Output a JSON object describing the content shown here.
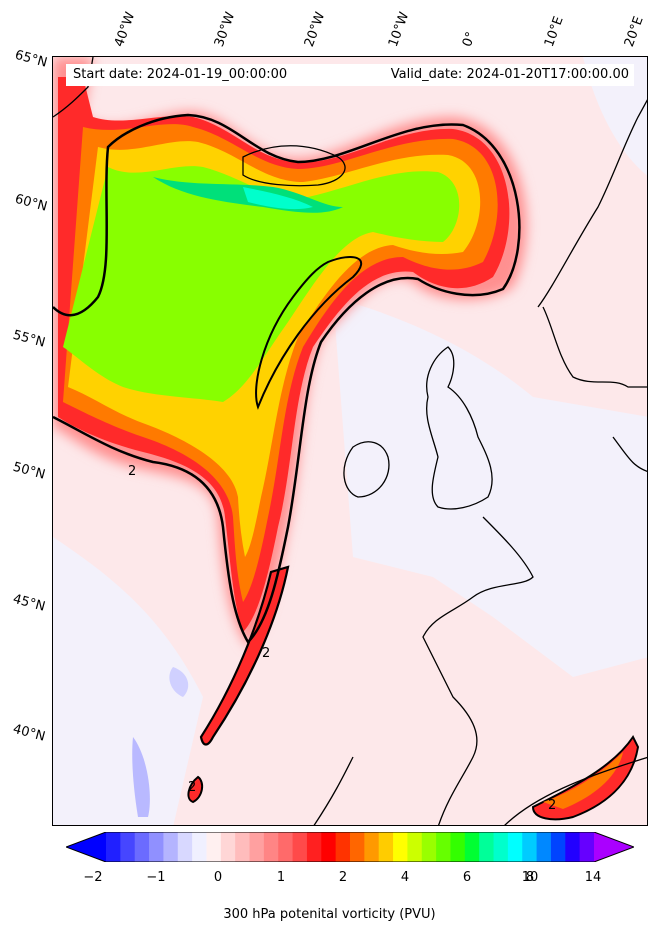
{
  "header": {
    "start_date": "Start date: 2024-01-19_00:00:00",
    "valid_date": "Valid_date: 2024-01-20T17:00:00.00"
  },
  "lat_labels": [
    "65°N",
    "60°N",
    "55°N",
    "50°N",
    "45°N",
    "40°N"
  ],
  "lon_labels": [
    "40°W",
    "30°W",
    "20°W",
    "10°W",
    "0°",
    "10°E",
    "20°E"
  ],
  "contour_label": "2",
  "colorbar": {
    "label": "300 hPa potenital vorticity (PVU)",
    "ticks": [
      "−2",
      "−1",
      "0",
      "1",
      "2",
      "4",
      "6",
      "8",
      "10",
      "14"
    ],
    "colors": [
      "#0000ff",
      "#2020ff",
      "#4646ff",
      "#6b6bff",
      "#9090ff",
      "#b4b4ff",
      "#d8d8ff",
      "#f0f0ff",
      "#fff0f0",
      "#ffd6d6",
      "#ffbcbc",
      "#ffa0a0",
      "#ff8585",
      "#ff6a6a",
      "#ff4a4a",
      "#ff2020",
      "#ff0000",
      "#ff3300",
      "#ff6600",
      "#ff9900",
      "#ffcc00",
      "#ffff00",
      "#ccff00",
      "#99ff00",
      "#66ff00",
      "#33ff00",
      "#00ff33",
      "#00ff99",
      "#00ffcc",
      "#00ffff",
      "#00ccff",
      "#0088ff",
      "#0044ff",
      "#2200ff",
      "#6600ff",
      "#aa00ff"
    ]
  }
}
